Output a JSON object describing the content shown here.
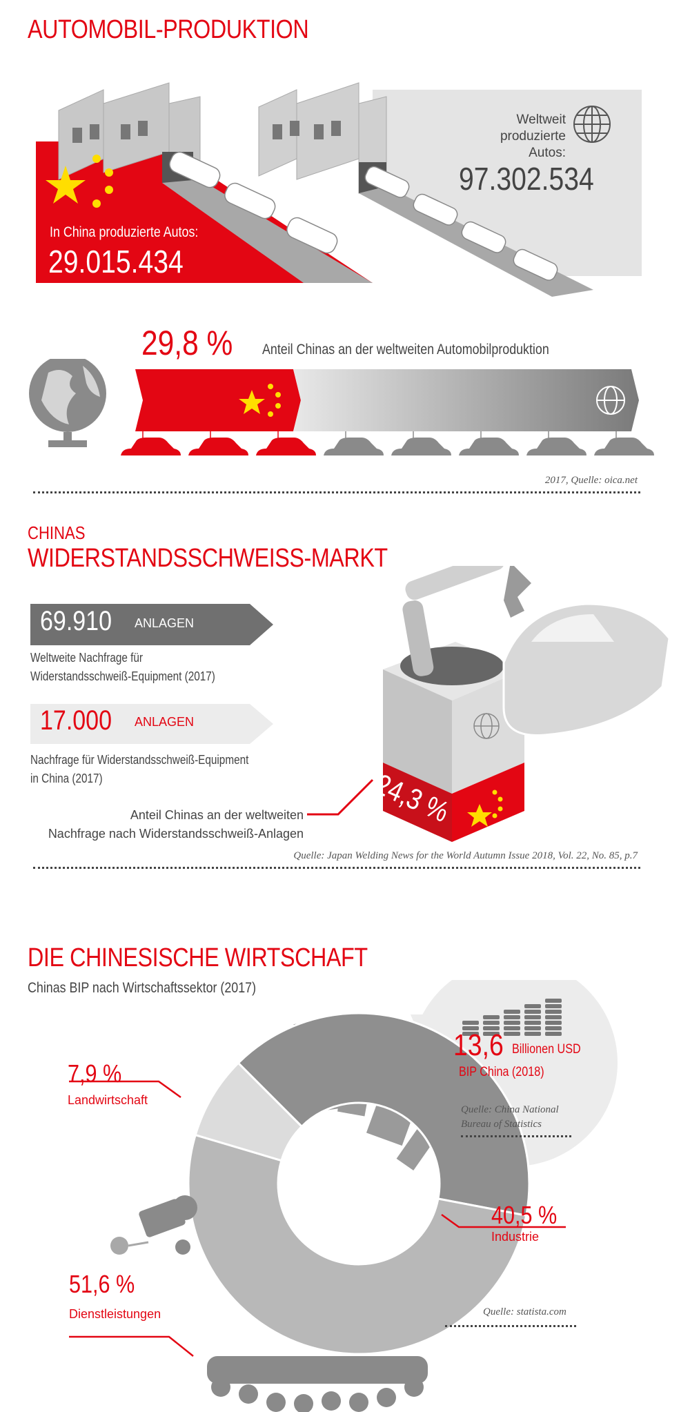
{
  "section1": {
    "title": "AUTOMOBIL-PRODUKTION",
    "china_label": "In China produzierte Autos:",
    "china_value": "29.015.434",
    "world_label_1": "Weltweit",
    "world_label_2": "produzierte Autos:",
    "world_value": "97.302.534",
    "share_value": "29,8 %",
    "share_label": "Anteil Chinas an der weltweiten Automobilproduktion",
    "share_fraction": 0.298,
    "source": "2017, Quelle: oica.net"
  },
  "section2": {
    "kicker": "CHINAS",
    "title": "WIDERSTANDSSCHWEISS-MARKT",
    "world_value": "69.910",
    "world_unit": "ANLAGEN",
    "world_desc_1": "Weltweite Nachfrage für",
    "world_desc_2": "Widerstandsschweiß-Equipment (2017)",
    "china_value": "17.000",
    "china_unit": "ANLAGEN",
    "china_desc_1": "Nachfrage für Widerstandsschweiß-Equipment",
    "china_desc_2": "in China (2017)",
    "share_desc_1": "Anteil Chinas an der weltweiten",
    "share_desc_2": "Nachfrage nach Widerstandsschweiß-Anlagen",
    "share_value": "24,3 %",
    "source": "Quelle: Japan Welding News for the World Autumn Issue 2018, Vol. 22, No. 85, p.7"
  },
  "section3": {
    "title": "DIE CHINESISCHE WIRTSCHAFT",
    "subtitle": "Chinas BIP nach Wirtschaftssektor (2017)",
    "gdp_value": "13,6",
    "gdp_unit": "Billionen USD",
    "gdp_label": "BIP China (2018)",
    "gdp_source_1": "Quelle: China National",
    "gdp_source_2": "Bureau of Statistics",
    "source": "Quelle: statista.com"
  },
  "colors": {
    "accent": "#e30613",
    "star": "#ffde00",
    "gray_dark": "#8a8a8a",
    "gray_mid": "#b3b3b3",
    "gray_light": "#dadada"
  },
  "chart_data": {
    "type": "pie",
    "title": "Chinas BIP nach Wirtschaftssektor (2017)",
    "slices": [
      {
        "label": "Industrie",
        "value": 40.5,
        "display": "40,5 %",
        "color": "#8f8f8f"
      },
      {
        "label": "Dienstleistungen",
        "value": 51.6,
        "display": "51,6 %",
        "color": "#b8b8b8"
      },
      {
        "label": "Landwirtschaft",
        "value": 7.9,
        "display": "7,9 %",
        "color": "#dcdcdc"
      }
    ]
  }
}
